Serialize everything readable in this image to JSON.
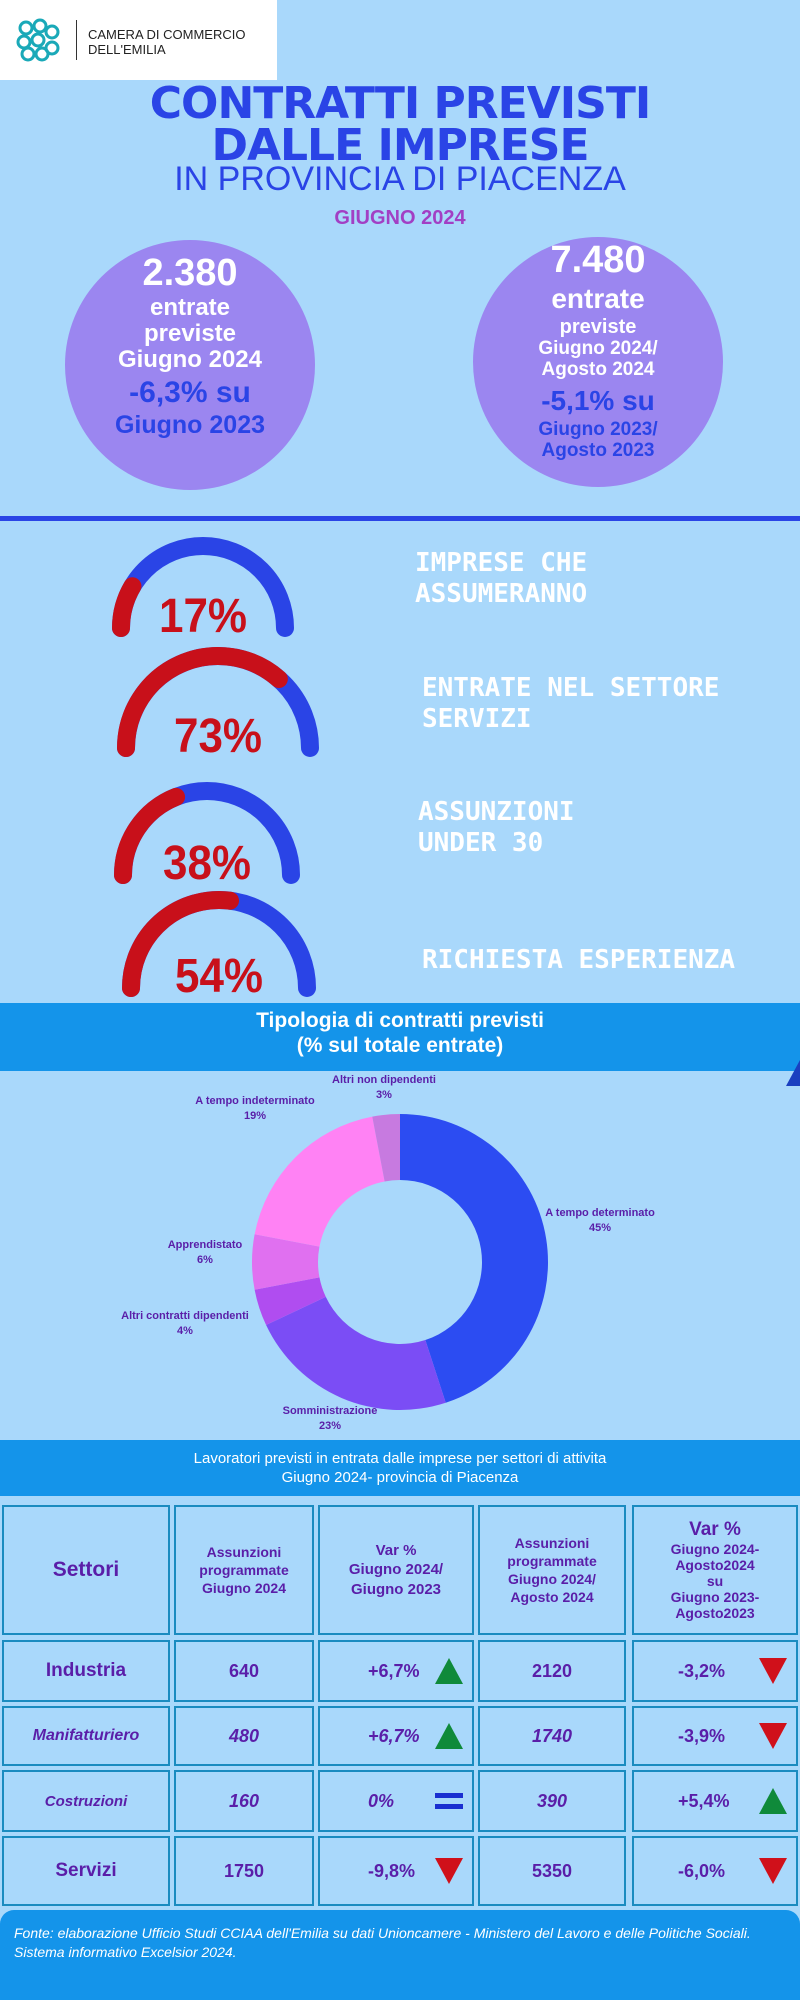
{
  "logo": {
    "line1": "CAMERA DI COMMERCIO",
    "line2": "DELL'EMILIA"
  },
  "header": {
    "title_line1": "CONTRATTI PREVISTI",
    "title_line2": "DALLE IMPRESE",
    "subtitle": "IN PROVINCIA DI PIACENZA",
    "month": "GIUGNO 2024"
  },
  "circles": [
    {
      "value": "2.380",
      "line1": "entrate",
      "line2": "previste",
      "line3": "Giugno 2024",
      "change": "-6,3% su",
      "change_ref": "Giugno  2023"
    },
    {
      "value": "7.480",
      "line1": "entrate",
      "line2": "previste",
      "line3": "Giugno 2024/",
      "line4": "Agosto 2024",
      "change": "-5,1% su",
      "change_ref1": "Giugno 2023/",
      "change_ref2": "Agosto 2023"
    }
  ],
  "gauges": [
    {
      "pct": "17%",
      "value": 0.17,
      "label1": "IMPRESE CHE",
      "label2": "ASSUMERANNO"
    },
    {
      "pct": "73%",
      "value": 0.73,
      "label1": "ENTRATE NEL SETTORE",
      "label2": "SERVIZI"
    },
    {
      "pct": "38%",
      "value": 0.38,
      "label1": "ASSUNZIONI",
      "label2": "UNDER 30"
    },
    {
      "pct": "54%",
      "value": 0.54,
      "label1": "RICHIESTA ESPERIENZA",
      "label2": ""
    }
  ],
  "colors": {
    "gauge_fill": "#c8101a",
    "gauge_track": "#2a44e6"
  },
  "donut_title": {
    "line1": "Tipologia di contratti previsti",
    "line2": "(% sul totale entrate)"
  },
  "chart_data": {
    "type": "pie",
    "slices": [
      {
        "name": "A tempo determinato",
        "label": "45%",
        "value": 45,
        "color": "#2c4cf2"
      },
      {
        "name": "Somministrazione",
        "label": "23%",
        "value": 23,
        "color": "#7b4df5"
      },
      {
        "name": "Altri contratti dipendenti",
        "label": "4%",
        "value": 4,
        "color": "#b04df0"
      },
      {
        "name": "Apprendistato",
        "label": "6%",
        "value": 6,
        "color": "#e070f0"
      },
      {
        "name": "A tempo indeterminato",
        "label": "19%",
        "value": 19,
        "color": "#ff82f4"
      },
      {
        "name": "Altri non dipendenti",
        "label": "3%",
        "value": 3,
        "color": "#c77ae0"
      }
    ]
  },
  "table": {
    "title1": "Lavoratori previsti in entrata dalle imprese per settori di attivita",
    "title2": "Giugno 2024- provincia di Piacenza",
    "headers": {
      "settori": "Settori",
      "h2": [
        "Assunzioni",
        "programmate",
        "Giugno 2024"
      ],
      "h3": [
        "Var %",
        "Giugno 2024/",
        "Giugno  2023"
      ],
      "h4": [
        "Assunzioni",
        "programmate",
        "Giugno 2024/",
        "Agosto 2024"
      ],
      "h5": [
        "Var %",
        "Giugno 2024-",
        "Agosto2024",
        "su",
        "Giugno 2023-",
        "Agosto2023"
      ]
    },
    "rows": [
      {
        "sector": "Industria",
        "a1": "640",
        "v1": "+6,7%",
        "t1": "up",
        "a2": "2120",
        "v2": "-3,2%",
        "t2": "down"
      },
      {
        "sector": "Manifatturiero",
        "a1": "480",
        "v1": "+6,7%",
        "t1": "up",
        "a2": "1740",
        "v2": "-3,9%",
        "t2": "down"
      },
      {
        "sector": "Costruzioni",
        "a1": "160",
        "v1": "0%",
        "t1": "equal",
        "a2": "390",
        "v2": "+5,4%",
        "t2": "up"
      },
      {
        "sector": "Servizi",
        "a1": "1750",
        "v1": "-9,8%",
        "t1": "down",
        "a2": "5350",
        "v2": "-6,0%",
        "t2": "down"
      }
    ]
  },
  "footer": {
    "text": "Fonte: elaborazione Ufficio Studi CCIAA dell'Emilia su dati Unioncamere - Ministero del Lavoro e delle Politiche Sociali. Sistema informativo Excelsior 2024."
  }
}
